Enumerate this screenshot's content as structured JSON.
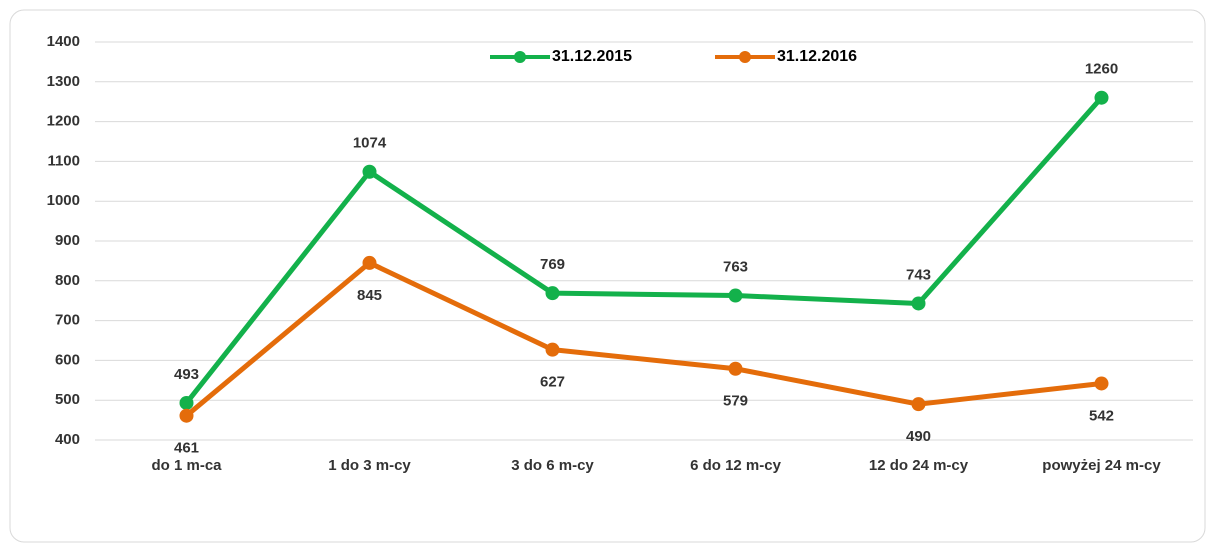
{
  "chart_data": {
    "type": "line",
    "categories": [
      "do 1 m-ca",
      "1 do 3 m-cy",
      "3 do 6 m-cy",
      "6 do 12 m-cy",
      "12 do 24 m-cy",
      "powyżej 24 m-cy"
    ],
    "series": [
      {
        "name": "31.12.2015",
        "color": "#13b14b",
        "values": [
          493,
          1074,
          769,
          763,
          743,
          1260
        ]
      },
      {
        "name": "31.12.2016",
        "color": "#e46c0a",
        "values": [
          461,
          845,
          627,
          579,
          490,
          542
        ]
      }
    ],
    "ylim": [
      400,
      1400
    ],
    "yticks": [
      400,
      500,
      600,
      700,
      800,
      900,
      1000,
      1100,
      1200,
      1300,
      1400
    ],
    "grid": true,
    "legend": "top"
  }
}
